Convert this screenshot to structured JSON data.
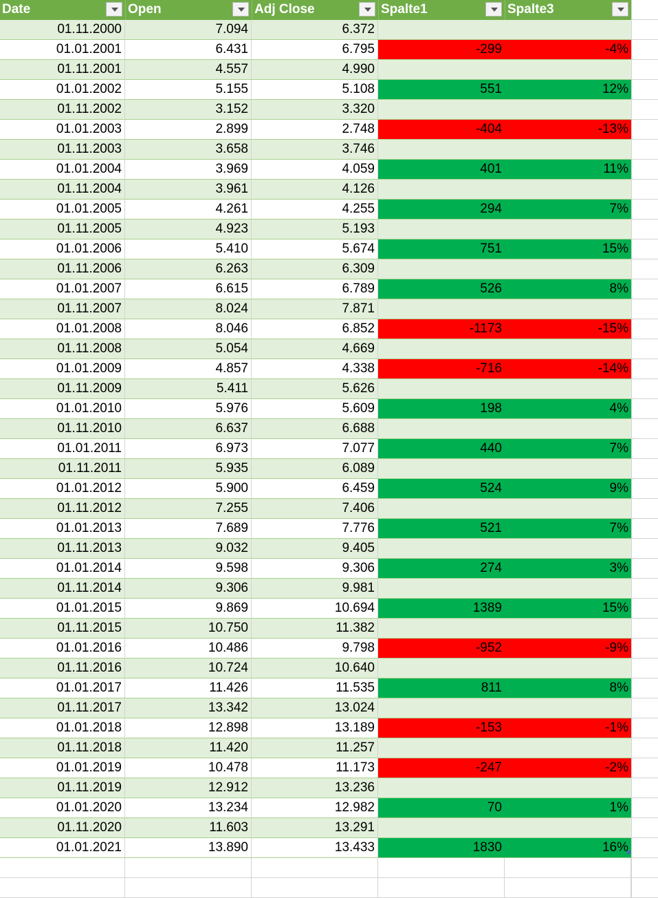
{
  "table": {
    "headers": [
      {
        "key": "date",
        "label": "Date"
      },
      {
        "key": "open",
        "label": "Open"
      },
      {
        "key": "adj_close",
        "label": "Adj Close"
      },
      {
        "key": "spalte1",
        "label": "Spalte1"
      },
      {
        "key": "spalte3",
        "label": "Spalte3"
      }
    ],
    "rows": [
      {
        "date": "01.11.2000",
        "open": "7.094",
        "adj_close": "6.372",
        "spalte1": "",
        "spalte3": "",
        "fill": ""
      },
      {
        "date": "01.01.2001",
        "open": "6.431",
        "adj_close": "6.795",
        "spalte1": "-299",
        "spalte3": "-4%",
        "fill": "negative"
      },
      {
        "date": "01.11.2001",
        "open": "4.557",
        "adj_close": "4.990",
        "spalte1": "",
        "spalte3": "",
        "fill": ""
      },
      {
        "date": "01.01.2002",
        "open": "5.155",
        "adj_close": "5.108",
        "spalte1": "551",
        "spalte3": "12%",
        "fill": "positive"
      },
      {
        "date": "01.11.2002",
        "open": "3.152",
        "adj_close": "3.320",
        "spalte1": "",
        "spalte3": "",
        "fill": ""
      },
      {
        "date": "01.01.2003",
        "open": "2.899",
        "adj_close": "2.748",
        "spalte1": "-404",
        "spalte3": "-13%",
        "fill": "negative"
      },
      {
        "date": "01.11.2003",
        "open": "3.658",
        "adj_close": "3.746",
        "spalte1": "",
        "spalte3": "",
        "fill": ""
      },
      {
        "date": "01.01.2004",
        "open": "3.969",
        "adj_close": "4.059",
        "spalte1": "401",
        "spalte3": "11%",
        "fill": "positive"
      },
      {
        "date": "01.11.2004",
        "open": "3.961",
        "adj_close": "4.126",
        "spalte1": "",
        "spalte3": "",
        "fill": ""
      },
      {
        "date": "01.01.2005",
        "open": "4.261",
        "adj_close": "4.255",
        "spalte1": "294",
        "spalte3": "7%",
        "fill": "positive"
      },
      {
        "date": "01.11.2005",
        "open": "4.923",
        "adj_close": "5.193",
        "spalte1": "",
        "spalte3": "",
        "fill": ""
      },
      {
        "date": "01.01.2006",
        "open": "5.410",
        "adj_close": "5.674",
        "spalte1": "751",
        "spalte3": "15%",
        "fill": "positive"
      },
      {
        "date": "01.11.2006",
        "open": "6.263",
        "adj_close": "6.309",
        "spalte1": "",
        "spalte3": "",
        "fill": ""
      },
      {
        "date": "01.01.2007",
        "open": "6.615",
        "adj_close": "6.789",
        "spalte1": "526",
        "spalte3": "8%",
        "fill": "positive"
      },
      {
        "date": "01.11.2007",
        "open": "8.024",
        "adj_close": "7.871",
        "spalte1": "",
        "spalte3": "",
        "fill": ""
      },
      {
        "date": "01.01.2008",
        "open": "8.046",
        "adj_close": "6.852",
        "spalte1": "-1173",
        "spalte3": "-15%",
        "fill": "negative"
      },
      {
        "date": "01.11.2008",
        "open": "5.054",
        "adj_close": "4.669",
        "spalte1": "",
        "spalte3": "",
        "fill": ""
      },
      {
        "date": "01.01.2009",
        "open": "4.857",
        "adj_close": "4.338",
        "spalte1": "-716",
        "spalte3": "-14%",
        "fill": "negative"
      },
      {
        "date": "01.11.2009",
        "open": "5.411",
        "adj_close": "5.626",
        "spalte1": "",
        "spalte3": "",
        "fill": ""
      },
      {
        "date": "01.01.2010",
        "open": "5.976",
        "adj_close": "5.609",
        "spalte1": "198",
        "spalte3": "4%",
        "fill": "positive"
      },
      {
        "date": "01.11.2010",
        "open": "6.637",
        "adj_close": "6.688",
        "spalte1": "",
        "spalte3": "",
        "fill": ""
      },
      {
        "date": "01.01.2011",
        "open": "6.973",
        "adj_close": "7.077",
        "spalte1": "440",
        "spalte3": "7%",
        "fill": "positive"
      },
      {
        "date": "01.11.2011",
        "open": "5.935",
        "adj_close": "6.089",
        "spalte1": "",
        "spalte3": "",
        "fill": ""
      },
      {
        "date": "01.01.2012",
        "open": "5.900",
        "adj_close": "6.459",
        "spalte1": "524",
        "spalte3": "9%",
        "fill": "positive"
      },
      {
        "date": "01.11.2012",
        "open": "7.255",
        "adj_close": "7.406",
        "spalte1": "",
        "spalte3": "",
        "fill": ""
      },
      {
        "date": "01.01.2013",
        "open": "7.689",
        "adj_close": "7.776",
        "spalte1": "521",
        "spalte3": "7%",
        "fill": "positive"
      },
      {
        "date": "01.11.2013",
        "open": "9.032",
        "adj_close": "9.405",
        "spalte1": "",
        "spalte3": "",
        "fill": ""
      },
      {
        "date": "01.01.2014",
        "open": "9.598",
        "adj_close": "9.306",
        "spalte1": "274",
        "spalte3": "3%",
        "fill": "positive"
      },
      {
        "date": "01.11.2014",
        "open": "9.306",
        "adj_close": "9.981",
        "spalte1": "",
        "spalte3": "",
        "fill": ""
      },
      {
        "date": "01.01.2015",
        "open": "9.869",
        "adj_close": "10.694",
        "spalte1": "1389",
        "spalte3": "15%",
        "fill": "positive"
      },
      {
        "date": "01.11.2015",
        "open": "10.750",
        "adj_close": "11.382",
        "spalte1": "",
        "spalte3": "",
        "fill": ""
      },
      {
        "date": "01.01.2016",
        "open": "10.486",
        "adj_close": "9.798",
        "spalte1": "-952",
        "spalte3": "-9%",
        "fill": "negative"
      },
      {
        "date": "01.11.2016",
        "open": "10.724",
        "adj_close": "10.640",
        "spalte1": "",
        "spalte3": "",
        "fill": ""
      },
      {
        "date": "01.01.2017",
        "open": "11.426",
        "adj_close": "11.535",
        "spalte1": "811",
        "spalte3": "8%",
        "fill": "positive"
      },
      {
        "date": "01.11.2017",
        "open": "13.342",
        "adj_close": "13.024",
        "spalte1": "",
        "spalte3": "",
        "fill": ""
      },
      {
        "date": "01.01.2018",
        "open": "12.898",
        "adj_close": "13.189",
        "spalte1": "-153",
        "spalte3": "-1%",
        "fill": "negative"
      },
      {
        "date": "01.11.2018",
        "open": "11.420",
        "adj_close": "11.257",
        "spalte1": "",
        "spalte3": "",
        "fill": ""
      },
      {
        "date": "01.01.2019",
        "open": "10.478",
        "adj_close": "11.173",
        "spalte1": "-247",
        "spalte3": "-2%",
        "fill": "negative"
      },
      {
        "date": "01.11.2019",
        "open": "12.912",
        "adj_close": "13.236",
        "spalte1": "",
        "spalte3": "",
        "fill": ""
      },
      {
        "date": "01.01.2020",
        "open": "13.234",
        "adj_close": "12.982",
        "spalte1": "70",
        "spalte3": "1%",
        "fill": "positive"
      },
      {
        "date": "01.11.2020",
        "open": "11.603",
        "adj_close": "13.291",
        "spalte1": "",
        "spalte3": "",
        "fill": ""
      },
      {
        "date": "01.01.2021",
        "open": "13.890",
        "adj_close": "13.433",
        "spalte1": "1830",
        "spalte3": "16%",
        "fill": "positive"
      }
    ]
  },
  "colors": {
    "header_bg": "#70ad47",
    "band_bg": "#e2efda",
    "negative_fill": "#ff0000",
    "positive_fill": "#00b050"
  },
  "icons": {
    "filter_dropdown": "chevron-down-icon"
  }
}
